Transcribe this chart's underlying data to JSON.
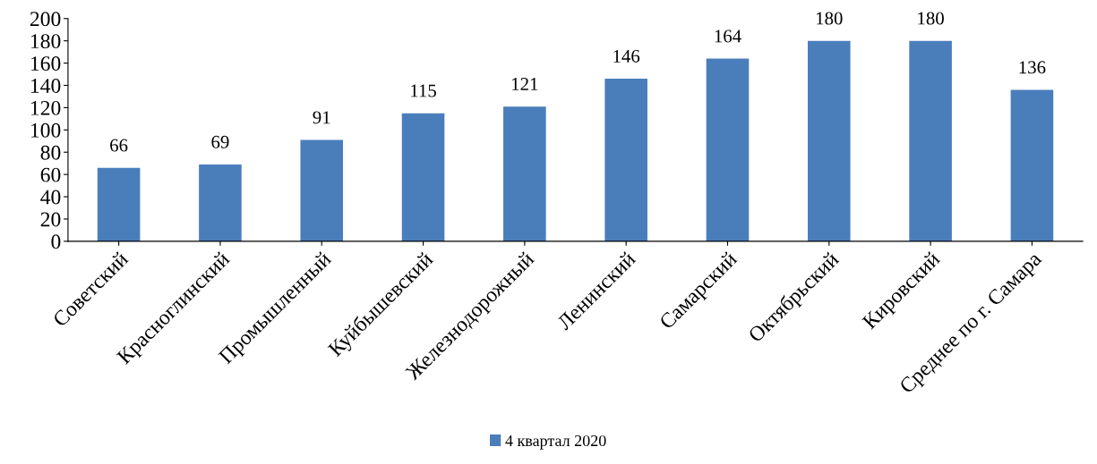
{
  "chart_data": {
    "type": "bar",
    "categories": [
      "Советский",
      "Красноглинский",
      "Промышленный",
      "Куйбышевский",
      "Железнодорожный",
      "Ленинский",
      "Самарский",
      "Октябрьский",
      "Кировский",
      "Среднее по г. Самара"
    ],
    "series": [
      {
        "name": "4 квартал 2020",
        "color": "#4a7ebb",
        "values": [
          66,
          69,
          91,
          115,
          121,
          146,
          164,
          180,
          180,
          136
        ]
      }
    ],
    "ylim": [
      0,
      200
    ],
    "yticks": [
      0,
      20,
      40,
      60,
      80,
      100,
      120,
      140,
      160,
      180,
      200
    ],
    "data_labels": true,
    "grid": false,
    "legend": "bottom"
  }
}
